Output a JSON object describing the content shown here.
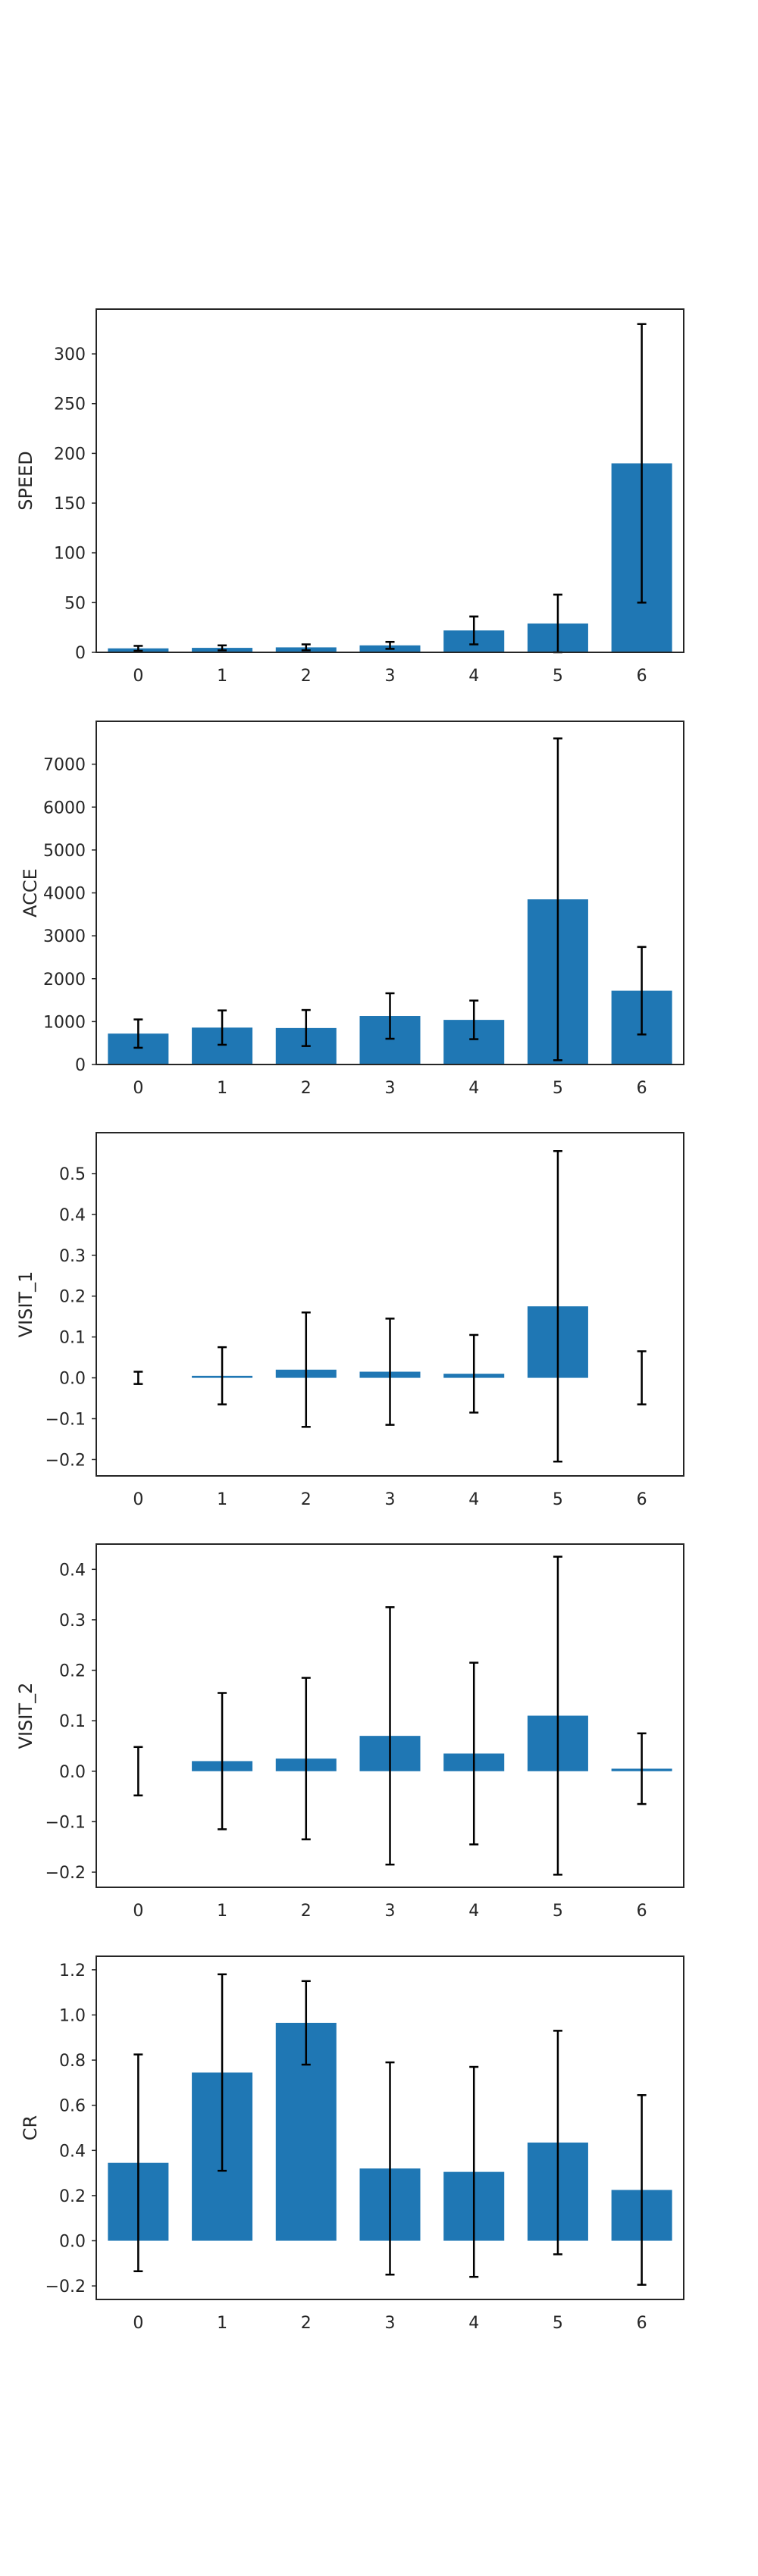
{
  "chart_data": [
    {
      "type": "bar",
      "ylabel": "SPEED",
      "categories": [
        "0",
        "1",
        "2",
        "3",
        "4",
        "5",
        "6"
      ],
      "values": [
        4.0,
        4.5,
        5.0,
        7.0,
        22.0,
        29.0,
        190.0
      ],
      "errors": [
        2.5,
        2.5,
        3.0,
        3.5,
        14.0,
        29.0,
        140.0
      ],
      "ylim": [
        0,
        345
      ],
      "yticks": [
        0,
        50,
        100,
        150,
        200,
        250,
        300
      ],
      "ytick_labels": [
        "0",
        "50",
        "100",
        "150",
        "200",
        "250",
        "300"
      ],
      "bar_color": "#1f77b4",
      "error_color": "#000000"
    },
    {
      "type": "bar",
      "ylabel": "ACCE",
      "categories": [
        "0",
        "1",
        "2",
        "3",
        "4",
        "5",
        "6"
      ],
      "values": [
        720,
        860,
        850,
        1130,
        1040,
        3850,
        1720
      ],
      "errors": [
        330,
        400,
        420,
        530,
        450,
        3750,
        1020
      ],
      "ylim": [
        0,
        8000
      ],
      "yticks": [
        0,
        1000,
        2000,
        3000,
        4000,
        5000,
        6000,
        7000
      ],
      "ytick_labels": [
        "0",
        "1000",
        "2000",
        "3000",
        "4000",
        "5000",
        "6000",
        "7000"
      ],
      "bar_color": "#1f77b4",
      "error_color": "#000000"
    },
    {
      "type": "bar",
      "ylabel": "VISIT_1",
      "categories": [
        "0",
        "1",
        "2",
        "3",
        "4",
        "5",
        "6"
      ],
      "values": [
        0.0,
        0.005,
        0.02,
        0.015,
        0.01,
        0.175,
        0.0
      ],
      "errors": [
        0.015,
        0.07,
        0.14,
        0.13,
        0.095,
        0.38,
        0.065
      ],
      "ylim": [
        -0.24,
        0.6
      ],
      "yticks": [
        -0.2,
        -0.1,
        0.0,
        0.1,
        0.2,
        0.3,
        0.4,
        0.5
      ],
      "ytick_labels": [
        "−0.2",
        "−0.1",
        "0.0",
        "0.1",
        "0.2",
        "0.3",
        "0.4",
        "0.5"
      ],
      "bar_color": "#1f77b4",
      "error_color": "#000000"
    },
    {
      "type": "bar",
      "ylabel": "VISIT_2",
      "categories": [
        "0",
        "1",
        "2",
        "3",
        "4",
        "5",
        "6"
      ],
      "values": [
        0.0,
        0.02,
        0.025,
        0.07,
        0.035,
        0.11,
        0.005
      ],
      "errors": [
        0.048,
        0.135,
        0.16,
        0.255,
        0.18,
        0.315,
        0.07
      ],
      "ylim": [
        -0.23,
        0.45
      ],
      "yticks": [
        -0.2,
        -0.1,
        0.0,
        0.1,
        0.2,
        0.3,
        0.4
      ],
      "ytick_labels": [
        "−0.2",
        "−0.1",
        "0.0",
        "0.1",
        "0.2",
        "0.3",
        "0.4"
      ],
      "bar_color": "#1f77b4",
      "error_color": "#000000"
    },
    {
      "type": "bar",
      "ylabel": "CR",
      "categories": [
        "0",
        "1",
        "2",
        "3",
        "4",
        "5",
        "6"
      ],
      "values": [
        0.345,
        0.745,
        0.965,
        0.32,
        0.305,
        0.435,
        0.225
      ],
      "errors": [
        0.48,
        0.435,
        0.185,
        0.47,
        0.465,
        0.495,
        0.42
      ],
      "ylim": [
        -0.26,
        1.26
      ],
      "yticks": [
        -0.2,
        0.0,
        0.2,
        0.4,
        0.6,
        0.8,
        1.0,
        1.2
      ],
      "ytick_labels": [
        "−0.2",
        "0.0",
        "0.2",
        "0.4",
        "0.6",
        "0.8",
        "1.0",
        "1.2"
      ],
      "bar_color": "#1f77b4",
      "error_color": "#000000"
    }
  ]
}
